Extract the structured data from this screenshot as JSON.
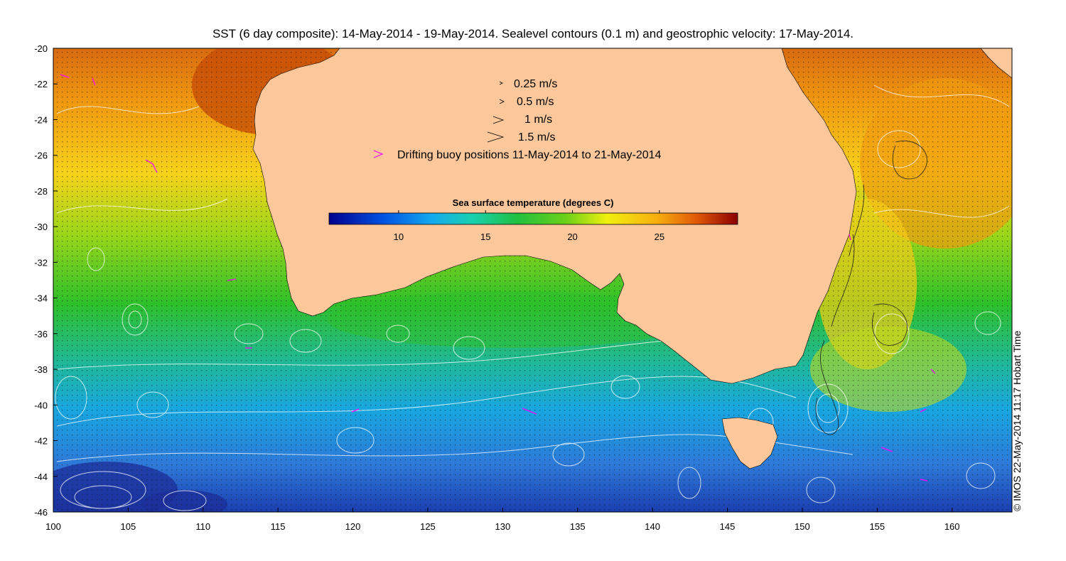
{
  "title": "SST (6 day composite): 14-May-2014 - 19-May-2014. Sealevel contours (0.1 m) and geostrophic velocity: 17-May-2014.",
  "credit": "© IMOS 22-May-2014 11:17 Hobart Time",
  "axes": {
    "x_ticks": [
      "100",
      "105",
      "110",
      "115",
      "120",
      "125",
      "130",
      "135",
      "140",
      "145",
      "150",
      "155",
      "160"
    ],
    "y_ticks": [
      "-20",
      "-22",
      "-24",
      "-26",
      "-28",
      "-30",
      "-32",
      "-34",
      "-36",
      "-38",
      "-40",
      "-42",
      "-44",
      "-46"
    ],
    "lon_range": [
      100,
      164
    ],
    "lat_range": [
      -46,
      -20
    ]
  },
  "legend": {
    "items": [
      {
        "label": "0.25 m/s"
      },
      {
        "label": "0.5 m/s"
      },
      {
        "label": "1 m/s"
      },
      {
        "label": "1.5 m/s"
      }
    ],
    "buoy_label": "Drifting buoy positions 11-May-2014 to 21-May-2014",
    "buoy_color": "#ff00ff"
  },
  "colorbar": {
    "title": "Sea surface temperature (degrees C)",
    "ticks": [
      "10",
      "15",
      "20",
      "25"
    ],
    "range": [
      6,
      29.5
    ]
  },
  "colors": {
    "land": "#fcc89b",
    "cold": "#1a3fb0",
    "warm": "#c43a00"
  }
}
